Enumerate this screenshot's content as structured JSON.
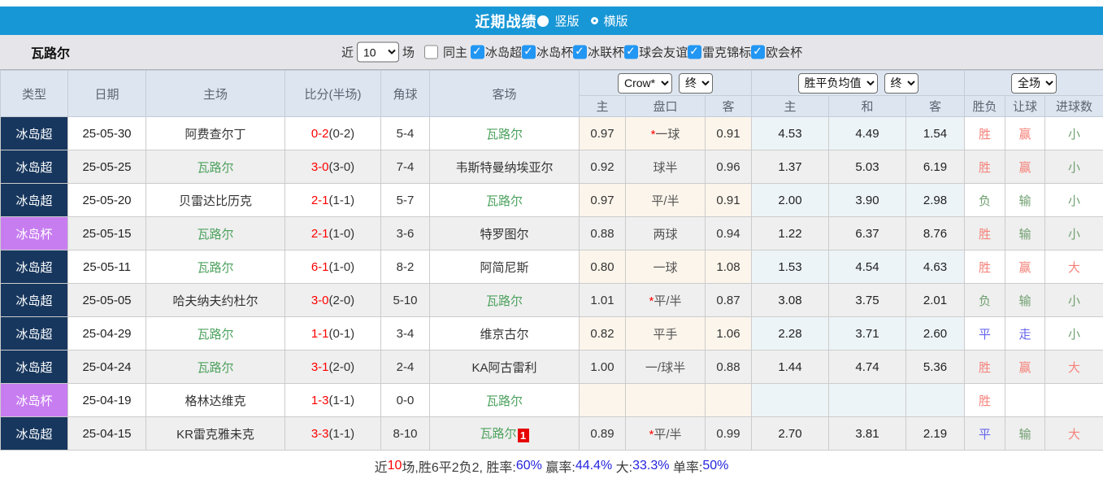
{
  "colors": {
    "topbar": "#1897d6",
    "navy": "#17375e",
    "purple": "#c77df0",
    "cream": "#fcf5eb",
    "lightblue": "#edf4f8",
    "headerbg": "#dde6f0",
    "score-red": "#ff0000",
    "res-red": "#f5827a",
    "res-green": "#71a071",
    "res-blue": "#6565ed",
    "team-green": "#4ea25f",
    "sum-blue": "#2424dd",
    "check-blue": "#2196f3"
  },
  "topbar": {
    "title": "近期战绩",
    "radios": [
      {
        "label": "竖版",
        "selected": "true"
      },
      {
        "label": "横版",
        "selected": "false"
      }
    ]
  },
  "filter": {
    "team": "瓦路尔",
    "recent_label": "近",
    "recent_value": "10",
    "games_label": "场",
    "same_home": {
      "label": "同主",
      "checked": "false"
    },
    "leagues": [
      {
        "label": "冰岛超",
        "checked": "true"
      },
      {
        "label": "冰岛杯",
        "checked": "true"
      },
      {
        "label": "冰联杯",
        "checked": "true"
      },
      {
        "label": "球会友谊",
        "checked": "true"
      },
      {
        "label": "雷克锦标",
        "checked": "true"
      },
      {
        "label": "欧会杯",
        "checked": "true"
      }
    ]
  },
  "table": {
    "selects": {
      "bookmaker": "Crow*",
      "ah_time": "终",
      "eu_type": "胜平负均值",
      "eu_time": "终",
      "scope": "全场"
    },
    "headers": {
      "type": "类型",
      "date": "日期",
      "home": "主场",
      "score": "比分(半场)",
      "corner": "角球",
      "away": "客场",
      "ah_home": "主",
      "ah_line": "盘口",
      "ah_away": "客",
      "eu_home": "主",
      "eu_draw": "和",
      "eu_away": "客",
      "outcome": "胜负",
      "handicap_res": "让球",
      "goals_res": "进球数"
    },
    "rows": [
      {
        "type": {
          "label": "冰岛超",
          "color": "navy"
        },
        "date": "25-05-30",
        "home": {
          "name": "阿费查尔丁",
          "color": "black"
        },
        "score": {
          "main": "0-2",
          "half": "(0-2)"
        },
        "corner": "5-4",
        "away": {
          "name": "瓦路尔",
          "color": "green",
          "badge": ""
        },
        "ah": {
          "home": "0.97",
          "star": "*",
          "line": "一球",
          "away": "0.91"
        },
        "eu": {
          "home": "4.53",
          "draw": "4.49",
          "away": "1.54"
        },
        "res": {
          "outcome": {
            "text": "胜",
            "color": "red"
          },
          "handicap": {
            "text": "赢",
            "color": "red"
          },
          "goals": {
            "text": "小",
            "color": "green"
          }
        }
      },
      {
        "type": {
          "label": "冰岛超",
          "color": "navy"
        },
        "date": "25-05-25",
        "home": {
          "name": "瓦路尔",
          "color": "green"
        },
        "score": {
          "main": "3-0",
          "half": "(3-0)"
        },
        "corner": "7-4",
        "away": {
          "name": "韦斯特曼纳埃亚尔",
          "color": "black",
          "badge": ""
        },
        "ah": {
          "home": "0.92",
          "star": "",
          "line": "球半",
          "away": "0.96"
        },
        "eu": {
          "home": "1.37",
          "draw": "5.03",
          "away": "6.19"
        },
        "res": {
          "outcome": {
            "text": "胜",
            "color": "red"
          },
          "handicap": {
            "text": "赢",
            "color": "red"
          },
          "goals": {
            "text": "小",
            "color": "green"
          }
        }
      },
      {
        "type": {
          "label": "冰岛超",
          "color": "navy"
        },
        "date": "25-05-20",
        "home": {
          "name": "贝雷达比历克",
          "color": "black"
        },
        "score": {
          "main": "2-1",
          "half": "(1-1)"
        },
        "corner": "5-7",
        "away": {
          "name": "瓦路尔",
          "color": "green",
          "badge": ""
        },
        "ah": {
          "home": "0.97",
          "star": "",
          "line": "平/半",
          "away": "0.91"
        },
        "eu": {
          "home": "2.00",
          "draw": "3.90",
          "away": "2.98"
        },
        "res": {
          "outcome": {
            "text": "负",
            "color": "green"
          },
          "handicap": {
            "text": "输",
            "color": "green"
          },
          "goals": {
            "text": "小",
            "color": "green"
          }
        }
      },
      {
        "type": {
          "label": "冰岛杯",
          "color": "purple"
        },
        "date": "25-05-15",
        "home": {
          "name": "瓦路尔",
          "color": "green"
        },
        "score": {
          "main": "2-1",
          "half": "(1-0)"
        },
        "corner": "3-6",
        "away": {
          "name": "特罗图尔",
          "color": "black",
          "badge": ""
        },
        "ah": {
          "home": "0.88",
          "star": "",
          "line": "两球",
          "away": "0.94"
        },
        "eu": {
          "home": "1.22",
          "draw": "6.37",
          "away": "8.76"
        },
        "res": {
          "outcome": {
            "text": "胜",
            "color": "red"
          },
          "handicap": {
            "text": "输",
            "color": "green"
          },
          "goals": {
            "text": "小",
            "color": "green"
          }
        }
      },
      {
        "type": {
          "label": "冰岛超",
          "color": "navy"
        },
        "date": "25-05-11",
        "home": {
          "name": "瓦路尔",
          "color": "green"
        },
        "score": {
          "main": "6-1",
          "half": "(1-0)"
        },
        "corner": "8-2",
        "away": {
          "name": "阿简尼斯",
          "color": "black",
          "badge": ""
        },
        "ah": {
          "home": "0.80",
          "star": "",
          "line": "一球",
          "away": "1.08"
        },
        "eu": {
          "home": "1.53",
          "draw": "4.54",
          "away": "4.63"
        },
        "res": {
          "outcome": {
            "text": "胜",
            "color": "red"
          },
          "handicap": {
            "text": "赢",
            "color": "red"
          },
          "goals": {
            "text": "大",
            "color": "red"
          }
        }
      },
      {
        "type": {
          "label": "冰岛超",
          "color": "navy"
        },
        "date": "25-05-05",
        "home": {
          "name": "哈夫纳夫约杜尔",
          "color": "black"
        },
        "score": {
          "main": "3-0",
          "half": "(2-0)"
        },
        "corner": "5-10",
        "away": {
          "name": "瓦路尔",
          "color": "green",
          "badge": ""
        },
        "ah": {
          "home": "1.01",
          "star": "*",
          "line": "平/半",
          "away": "0.87"
        },
        "eu": {
          "home": "3.08",
          "draw": "3.75",
          "away": "2.01"
        },
        "res": {
          "outcome": {
            "text": "负",
            "color": "green"
          },
          "handicap": {
            "text": "输",
            "color": "green"
          },
          "goals": {
            "text": "小",
            "color": "green"
          }
        }
      },
      {
        "type": {
          "label": "冰岛超",
          "color": "navy"
        },
        "date": "25-04-29",
        "home": {
          "name": "瓦路尔",
          "color": "green"
        },
        "score": {
          "main": "1-1",
          "half": "(0-1)"
        },
        "corner": "3-4",
        "away": {
          "name": "维京古尔",
          "color": "black",
          "badge": ""
        },
        "ah": {
          "home": "0.82",
          "star": "",
          "line": "平手",
          "away": "1.06"
        },
        "eu": {
          "home": "2.28",
          "draw": "3.71",
          "away": "2.60"
        },
        "res": {
          "outcome": {
            "text": "平",
            "color": "blue"
          },
          "handicap": {
            "text": "走",
            "color": "blue"
          },
          "goals": {
            "text": "小",
            "color": "green"
          }
        }
      },
      {
        "type": {
          "label": "冰岛超",
          "color": "navy"
        },
        "date": "25-04-24",
        "home": {
          "name": "瓦路尔",
          "color": "green"
        },
        "score": {
          "main": "3-1",
          "half": "(2-0)"
        },
        "corner": "2-4",
        "away": {
          "name": "KA阿古雷利",
          "color": "black",
          "badge": ""
        },
        "ah": {
          "home": "1.00",
          "star": "",
          "line": "一/球半",
          "away": "0.88"
        },
        "eu": {
          "home": "1.44",
          "draw": "4.74",
          "away": "5.36"
        },
        "res": {
          "outcome": {
            "text": "胜",
            "color": "red"
          },
          "handicap": {
            "text": "赢",
            "color": "red"
          },
          "goals": {
            "text": "大",
            "color": "red"
          }
        }
      },
      {
        "type": {
          "label": "冰岛杯",
          "color": "purple"
        },
        "date": "25-04-19",
        "home": {
          "name": "格林达维克",
          "color": "black"
        },
        "score": {
          "main": "1-3",
          "half": "(1-1)"
        },
        "corner": "0-0",
        "away": {
          "name": "瓦路尔",
          "color": "green",
          "badge": ""
        },
        "ah": {
          "home": "",
          "star": "",
          "line": "",
          "away": ""
        },
        "eu": {
          "home": "",
          "draw": "",
          "away": ""
        },
        "res": {
          "outcome": {
            "text": "胜",
            "color": "red"
          },
          "handicap": {
            "text": "",
            "color": ""
          },
          "goals": {
            "text": "",
            "color": ""
          }
        }
      },
      {
        "type": {
          "label": "冰岛超",
          "color": "navy"
        },
        "date": "25-04-15",
        "home": {
          "name": "KR雷克雅未克",
          "color": "black"
        },
        "score": {
          "main": "3-3",
          "half": "(1-1)"
        },
        "corner": "8-10",
        "away": {
          "name": "瓦路尔",
          "color": "green",
          "badge": "1"
        },
        "ah": {
          "home": "0.89",
          "star": "*",
          "line": "平/半",
          "away": "0.99"
        },
        "eu": {
          "home": "2.70",
          "draw": "3.81",
          "away": "2.19"
        },
        "res": {
          "outcome": {
            "text": "平",
            "color": "blue"
          },
          "handicap": {
            "text": "输",
            "color": "green"
          },
          "goals": {
            "text": "大",
            "color": "red"
          }
        }
      }
    ]
  },
  "summary": {
    "parts": [
      {
        "text": "近",
        "color": "dark"
      },
      {
        "text": "10",
        "color": "red"
      },
      {
        "text": "场,胜6平2负2, 胜率:",
        "color": "dark"
      },
      {
        "text": "60%",
        "color": "blue"
      },
      {
        "text": " 赢率:",
        "color": "dark"
      },
      {
        "text": "44.4%",
        "color": "blue"
      },
      {
        "text": " 大:",
        "color": "dark"
      },
      {
        "text": "33.3%",
        "color": "blue"
      },
      {
        "text": " 单率:",
        "color": "dark"
      },
      {
        "text": "50%",
        "color": "blue"
      }
    ]
  }
}
